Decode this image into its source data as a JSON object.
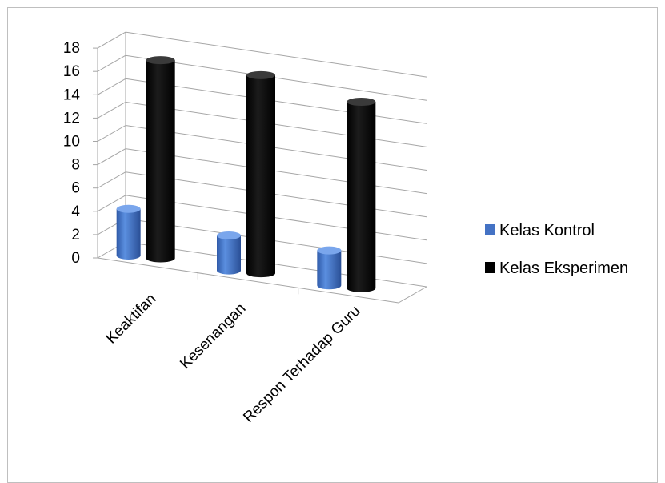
{
  "chart_data": {
    "type": "bar",
    "style": "3d-cylinder",
    "title": "",
    "xlabel": "",
    "ylabel": "",
    "categories": [
      "Keaktifan",
      "Kesenangan",
      "Respon Terhadap Guru"
    ],
    "series": [
      {
        "name": "Kelas Kontrol",
        "values": [
          4,
          3,
          3
        ],
        "color": "#4472c4"
      },
      {
        "name": "Kelas Eksperimen",
        "values": [
          17,
          17,
          16
        ],
        "color": "#000000"
      }
    ],
    "ylim": [
      0,
      18
    ],
    "yticks": [
      "0",
      "2",
      "4",
      "6",
      "8",
      "10",
      "12",
      "14",
      "16",
      "18"
    ],
    "grid": true,
    "legend_position": "right"
  }
}
